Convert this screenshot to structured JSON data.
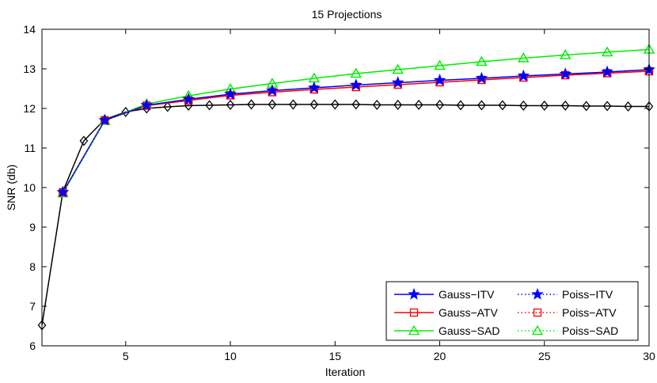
{
  "chart_data": {
    "type": "line",
    "title": "15 Projections",
    "xlabel": "Iteration",
    "ylabel": "SNR (db)",
    "xlim": [
      1,
      30
    ],
    "ylim": [
      6,
      14
    ],
    "xticks": [
      5,
      10,
      15,
      20,
      25,
      30
    ],
    "yticks": [
      6,
      7,
      8,
      9,
      10,
      11,
      12,
      13,
      14
    ],
    "grid": false,
    "legend_position": "bottom-right",
    "series": [
      {
        "name": "Gauss−ITV",
        "color": "#0000ff",
        "line": "solid",
        "marker": "star",
        "x": [
          2,
          4,
          6,
          8,
          10,
          12,
          14,
          16,
          18,
          20,
          22,
          24,
          26,
          28,
          30
        ],
        "y": [
          9.88,
          11.7,
          12.08,
          12.23,
          12.36,
          12.45,
          12.52,
          12.59,
          12.65,
          12.71,
          12.76,
          12.82,
          12.87,
          12.92,
          12.98
        ]
      },
      {
        "name": "Gauss−ATV",
        "color": "#ff0000",
        "line": "solid",
        "marker": "square",
        "x": [
          2,
          4,
          6,
          8,
          10,
          12,
          14,
          16,
          18,
          20,
          22,
          24,
          26,
          28,
          30
        ],
        "y": [
          9.88,
          11.7,
          12.07,
          12.2,
          12.33,
          12.41,
          12.48,
          12.54,
          12.6,
          12.66,
          12.72,
          12.78,
          12.84,
          12.89,
          12.94
        ]
      },
      {
        "name": "Gauss−SAD",
        "color": "#00ee00",
        "line": "solid",
        "marker": "triangle",
        "x": [
          2,
          4,
          6,
          8,
          10,
          12,
          14,
          16,
          18,
          20,
          22,
          24,
          26,
          28,
          30
        ],
        "y": [
          9.86,
          11.69,
          12.11,
          12.32,
          12.49,
          12.63,
          12.76,
          12.88,
          12.98,
          13.08,
          13.18,
          13.27,
          13.35,
          13.42,
          13.49
        ]
      },
      {
        "name": "Poiss−ITV",
        "color": "#0000ff",
        "line": "dotted",
        "marker": "star",
        "x": [
          2,
          4,
          6,
          8,
          10,
          12,
          14,
          16,
          18,
          20,
          22,
          24,
          26,
          28,
          30
        ],
        "y": [
          9.88,
          11.7,
          12.08,
          12.23,
          12.36,
          12.45,
          12.52,
          12.59,
          12.65,
          12.71,
          12.76,
          12.82,
          12.87,
          12.92,
          12.98
        ]
      },
      {
        "name": "Poiss−ATV",
        "color": "#ff0000",
        "line": "dotted",
        "marker": "square",
        "x": [
          2,
          4,
          6,
          8,
          10,
          12,
          14,
          16,
          18,
          20,
          22,
          24,
          26,
          28,
          30
        ],
        "y": [
          9.88,
          11.7,
          12.07,
          12.2,
          12.33,
          12.41,
          12.48,
          12.54,
          12.6,
          12.66,
          12.72,
          12.78,
          12.84,
          12.89,
          12.94
        ]
      },
      {
        "name": "Poiss−SAD",
        "color": "#00ee00",
        "line": "dotted",
        "marker": "triangle",
        "x": [
          2,
          4,
          6,
          8,
          10,
          12,
          14,
          16,
          18,
          20,
          22,
          24,
          26,
          28,
          30
        ],
        "y": [
          9.86,
          11.69,
          12.11,
          12.32,
          12.49,
          12.63,
          12.76,
          12.88,
          12.98,
          13.08,
          13.18,
          13.27,
          13.35,
          13.42,
          13.49
        ]
      },
      {
        "name": "",
        "color": "#000000",
        "line": "solid",
        "marker": "diamond",
        "x": [
          1,
          2,
          3,
          4,
          5,
          6,
          7,
          8,
          9,
          10,
          11,
          12,
          13,
          14,
          15,
          16,
          17,
          18,
          19,
          20,
          21,
          22,
          23,
          24,
          25,
          26,
          27,
          28,
          29,
          30
        ],
        "y": [
          6.52,
          9.9,
          11.18,
          11.72,
          11.91,
          12.0,
          12.04,
          12.07,
          12.08,
          12.09,
          12.1,
          12.1,
          12.1,
          12.1,
          12.1,
          12.1,
          12.09,
          12.09,
          12.09,
          12.09,
          12.08,
          12.08,
          12.08,
          12.07,
          12.07,
          12.07,
          12.06,
          12.06,
          12.05,
          12.05
        ]
      }
    ],
    "legend": [
      {
        "label": "Gauss−ITV",
        "series": 0
      },
      {
        "label": "Poiss−ITV",
        "series": 3
      },
      {
        "label": "Gauss−ATV",
        "series": 1
      },
      {
        "label": "Poiss−ATV",
        "series": 4
      },
      {
        "label": "Gauss−SAD",
        "series": 2
      },
      {
        "label": "Poiss−SAD",
        "series": 5
      }
    ]
  }
}
